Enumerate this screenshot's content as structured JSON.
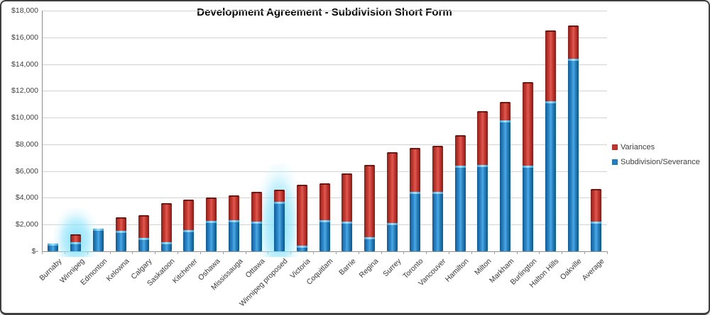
{
  "chart_data": {
    "type": "bar",
    "stacked": true,
    "title": "Development Agreement - Subdivision Short Form",
    "categories": [
      "Burnaby",
      "Winnipeg",
      "Edmonton",
      "Kelowna",
      "Calgary",
      "Saskatoon",
      "Kitchener",
      "Oshawa",
      "Mississauga",
      "Ottawa",
      "Winnipeg proposed",
      "Victoria",
      "Coquitlam",
      "Barrie",
      "Regina",
      "Surrey",
      "Toronto",
      "Vancouver",
      "Hamilton",
      "Milton",
      "Markham",
      "Burlington",
      "Halton Hills",
      "Oakville",
      "Average"
    ],
    "series": [
      {
        "name": "Subdivision/Severance",
        "color": "#1f81c4",
        "values": [
          600,
          700,
          1700,
          1550,
          1000,
          700,
          1600,
          2300,
          2350,
          2200,
          3700,
          400,
          2350,
          2200,
          1050,
          2100,
          4450,
          4450,
          6400,
          6450,
          9800,
          6400,
          11200,
          14400,
          2200
        ]
      },
      {
        "name": "Variances",
        "color": "#c0342b",
        "values": [
          0,
          550,
          0,
          1000,
          1700,
          2900,
          2250,
          1700,
          1850,
          2250,
          900,
          4600,
          2750,
          3600,
          5400,
          5300,
          3300,
          3450,
          2300,
          4050,
          1350,
          6250,
          5300,
          2500,
          2450
        ]
      }
    ],
    "ylim": [
      0,
      18000
    ],
    "ytick_step": 2000,
    "ytick_labels": [
      "$-",
      "$2,000",
      "$4,000",
      "$6,000",
      "$8,000",
      "$10,000",
      "$12,000",
      "$14,000",
      "$16,000",
      "$18,000"
    ],
    "grid": true,
    "legend_position": "right",
    "legend": [
      {
        "label": "Variances",
        "color_key": 1
      },
      {
        "label": "Subdivision/Severance",
        "color_key": 0
      }
    ],
    "highlighted_categories": [
      "Winnipeg",
      "Winnipeg proposed"
    ]
  }
}
